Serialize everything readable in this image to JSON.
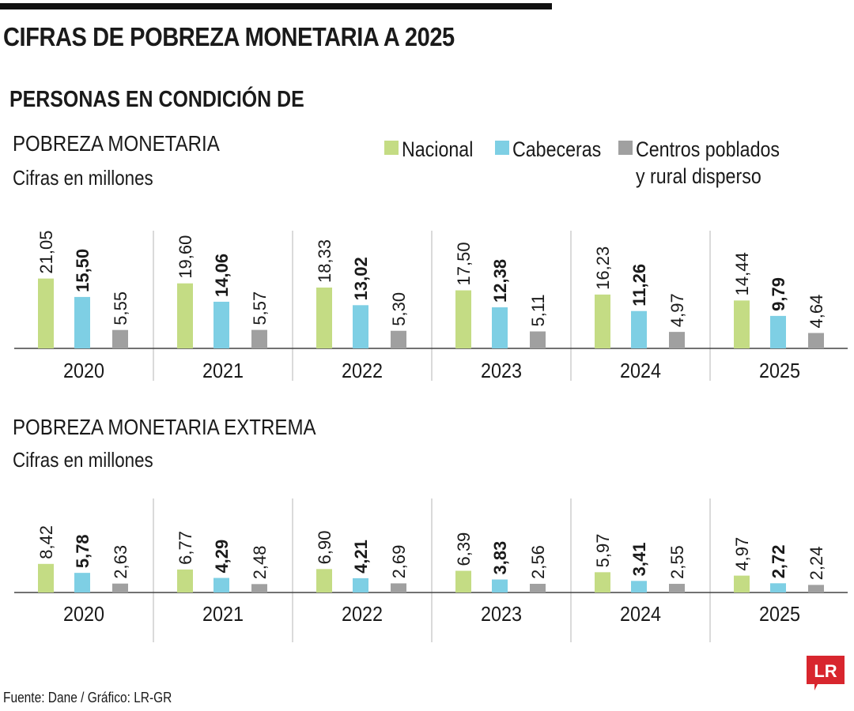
{
  "header": {
    "title": "CIFRAS DE POBREZA MONETARIA A 2025",
    "subtitle": "PERSONAS EN CONDICIÓN DE"
  },
  "legend": [
    {
      "label": "Nacional",
      "color": "#c4dc84"
    },
    {
      "label": "Cabeceras",
      "color": "#7ecfe4"
    },
    {
      "label": "Centros poblados y rural disperso",
      "color": "#a0a0a0"
    }
  ],
  "chart_data": [
    {
      "type": "bar",
      "title": "POBREZA MONETARIA",
      "subtitle": "Cifras en millones",
      "categories": [
        "2020",
        "2021",
        "2022",
        "2023",
        "2024",
        "2025"
      ],
      "series": [
        {
          "name": "Nacional",
          "color": "#c4dc84",
          "bold": false,
          "values": [
            21.05,
            19.6,
            18.33,
            17.5,
            16.23,
            14.44
          ],
          "labels": [
            "21,05",
            "19,60",
            "18,33",
            "17,50",
            "16,23",
            "14,44"
          ]
        },
        {
          "name": "Cabeceras",
          "color": "#7ecfe4",
          "bold": true,
          "values": [
            15.5,
            14.06,
            13.02,
            12.38,
            11.26,
            9.79
          ],
          "labels": [
            "15,50",
            "14,06",
            "13,02",
            "12,38",
            "11,26",
            "9,79"
          ]
        },
        {
          "name": "Centros poblados y rural disperso",
          "color": "#a0a0a0",
          "bold": false,
          "values": [
            5.55,
            5.57,
            5.3,
            5.11,
            4.97,
            4.64
          ],
          "labels": [
            "5,55",
            "5,57",
            "5,30",
            "5,11",
            "4,97",
            "4,64"
          ]
        }
      ]
    },
    {
      "type": "bar",
      "title": "POBREZA MONETARIA EXTREMA",
      "subtitle": "Cifras en millones",
      "categories": [
        "2020",
        "2021",
        "2022",
        "2023",
        "2024",
        "2025"
      ],
      "series": [
        {
          "name": "Nacional",
          "color": "#c4dc84",
          "bold": false,
          "values": [
            8.42,
            6.77,
            6.9,
            6.39,
            5.97,
            4.97
          ],
          "labels": [
            "8,42",
            "6,77",
            "6,90",
            "6,39",
            "5,97",
            "4,97"
          ]
        },
        {
          "name": "Cabeceras",
          "color": "#7ecfe4",
          "bold": true,
          "values": [
            5.78,
            4.29,
            4.21,
            3.83,
            3.41,
            2.72
          ],
          "labels": [
            "5,78",
            "4,29",
            "4,21",
            "3,83",
            "3,41",
            "2,72"
          ]
        },
        {
          "name": "Centros poblados y rural disperso",
          "color": "#a0a0a0",
          "bold": false,
          "values": [
            2.63,
            2.48,
            2.69,
            2.56,
            2.55,
            2.24
          ],
          "labels": [
            "2,63",
            "2,48",
            "2,69",
            "2,56",
            "2,55",
            "2,24"
          ]
        }
      ]
    }
  ],
  "footer": {
    "source": "Fuente: Dane / Gráfico: LR-GR"
  },
  "logo": {
    "text": "LR",
    "color": "#d8262e"
  }
}
